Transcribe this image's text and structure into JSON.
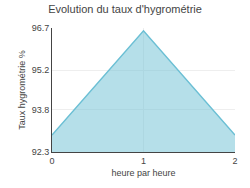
{
  "chart_data": {
    "type": "area",
    "title": "Evolution du taux d'hygrométrie",
    "xlabel": "heure par heure",
    "ylabel": "Taux hygrométrie %",
    "x": [
      0,
      1,
      2
    ],
    "values": [
      92.9,
      96.6,
      92.9
    ],
    "color": "#6bbfd4",
    "xlim": [
      0,
      2
    ],
    "xticks": [
      0,
      1,
      2
    ],
    "ylim": [
      92.3,
      96.7
    ],
    "yticks": [
      92.3,
      93.8,
      95.2,
      96.7
    ],
    "grid": true
  }
}
